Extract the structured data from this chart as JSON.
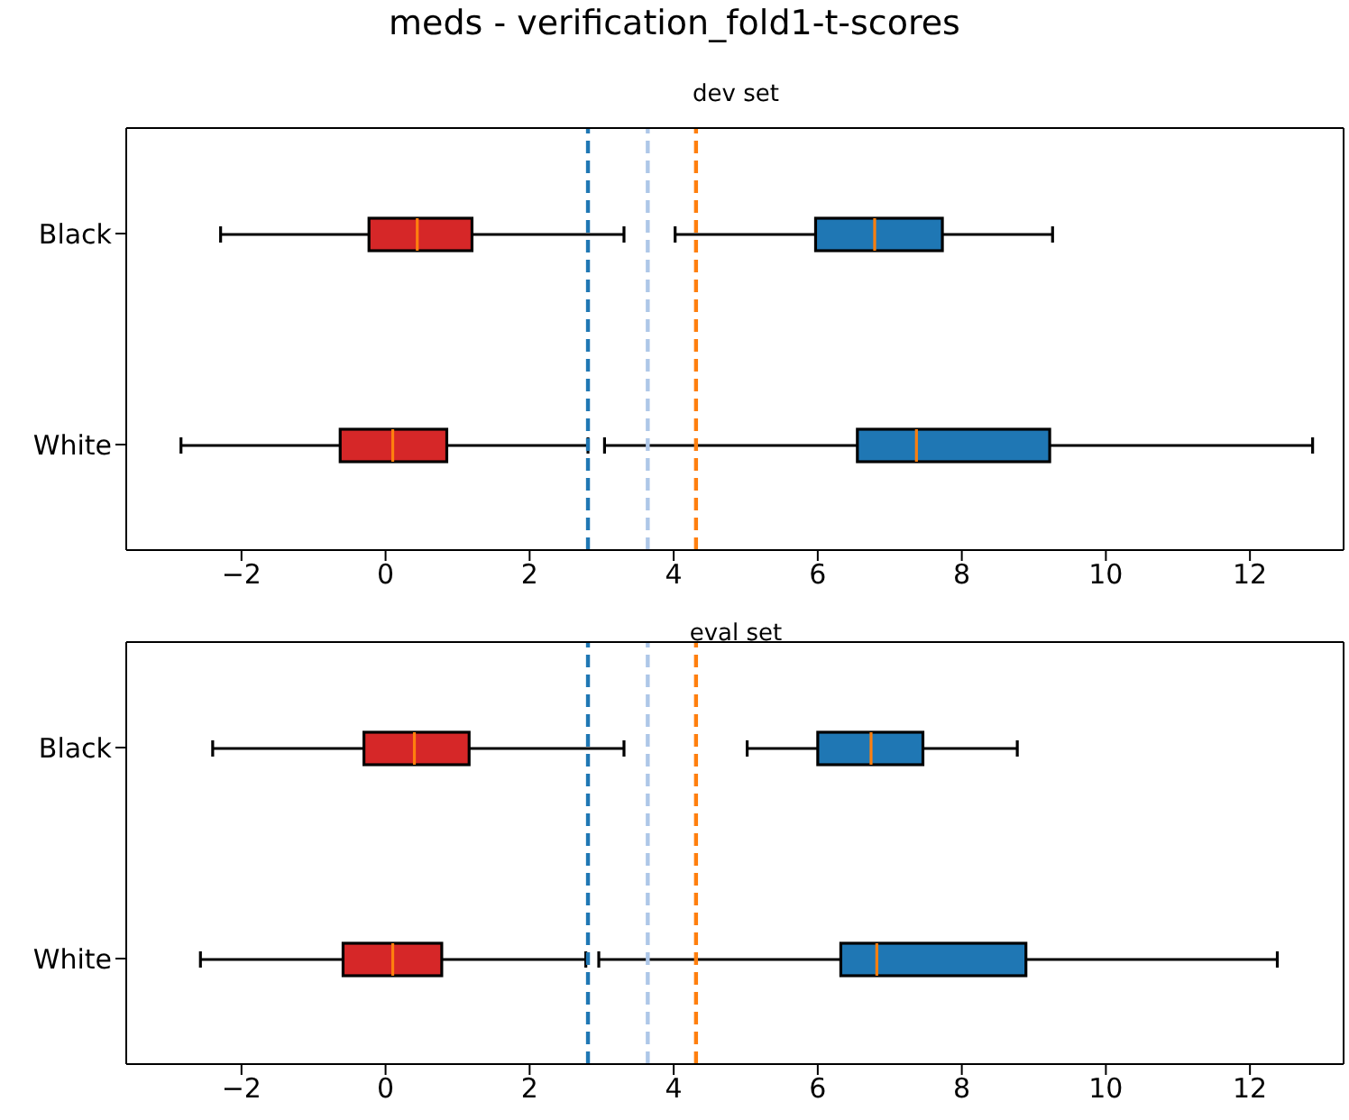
{
  "chart_data": [
    {
      "type": "box",
      "orientation": "horizontal",
      "title": "meds - verification_fold1-t-scores",
      "subtitle": "dev set",
      "categories": [
        "Black",
        "White"
      ],
      "xlim": [
        -3.6,
        13.3
      ],
      "xticks": [
        -2,
        0,
        2,
        4,
        6,
        8,
        10,
        12
      ],
      "series": [
        {
          "color": "#d62728",
          "boxes": [
            {
              "low": -2.29,
              "q1": -0.23,
              "median": 0.44,
              "q3": 1.2,
              "high": 3.31
            },
            {
              "low": -2.84,
              "q1": -0.63,
              "median": 0.1,
              "q3": 0.85,
              "high": 2.81
            }
          ]
        },
        {
          "color": "#1f77b4",
          "boxes": [
            {
              "low": 4.02,
              "q1": 5.97,
              "median": 6.79,
              "q3": 7.73,
              "high": 9.26
            },
            {
              "low": 3.04,
              "q1": 6.55,
              "median": 7.37,
              "q3": 9.22,
              "high": 12.87
            }
          ]
        }
      ],
      "ref_lines": [
        {
          "axis": "x",
          "value": 2.81,
          "color": "#1f77b4",
          "line_style": "dashed"
        },
        {
          "axis": "x",
          "value": 3.64,
          "color": "#aec7e8",
          "line_style": "dashed"
        },
        {
          "axis": "x",
          "value": 4.31,
          "color": "#ff7f0e",
          "line_style": "dashed"
        }
      ]
    },
    {
      "type": "box",
      "orientation": "horizontal",
      "subtitle": "eval set",
      "categories": [
        "Black",
        "White"
      ],
      "xlim": [
        -3.6,
        13.3
      ],
      "xticks": [
        -2,
        0,
        2,
        4,
        6,
        8,
        10,
        12
      ],
      "series": [
        {
          "color": "#d62728",
          "boxes": [
            {
              "low": -2.4,
              "q1": -0.3,
              "median": 0.4,
              "q3": 1.16,
              "high": 3.31
            },
            {
              "low": -2.57,
              "q1": -0.59,
              "median": 0.1,
              "q3": 0.78,
              "high": 2.78
            }
          ]
        },
        {
          "color": "#1f77b4",
          "boxes": [
            {
              "low": 5.02,
              "q1": 6.0,
              "median": 6.74,
              "q3": 7.46,
              "high": 8.77
            },
            {
              "low": 2.96,
              "q1": 6.32,
              "median": 6.82,
              "q3": 8.89,
              "high": 12.38
            }
          ]
        }
      ],
      "ref_lines": [
        {
          "axis": "x",
          "value": 2.81,
          "color": "#1f77b4",
          "line_style": "dashed"
        },
        {
          "axis": "x",
          "value": 3.64,
          "color": "#aec7e8",
          "line_style": "dashed"
        },
        {
          "axis": "x",
          "value": 4.31,
          "color": "#ff7f0e",
          "line_style": "dashed"
        }
      ]
    }
  ]
}
